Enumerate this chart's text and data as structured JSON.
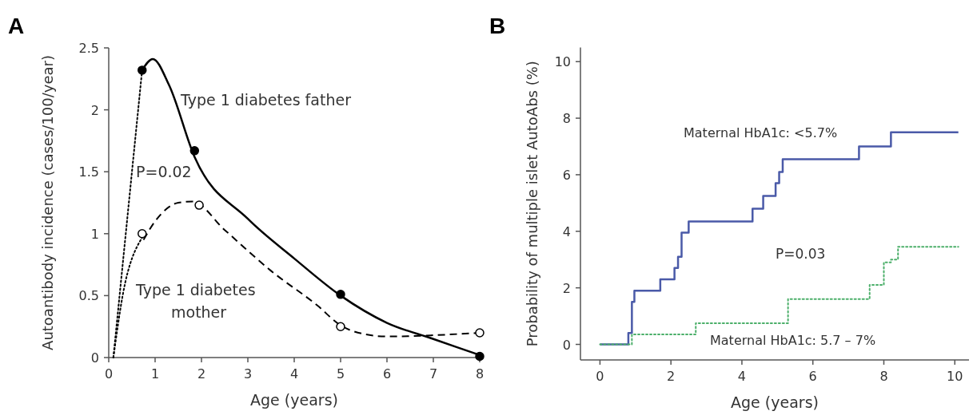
{
  "chart_data": [
    {
      "type": "line",
      "title": "A",
      "xlabel": "Age (years)",
      "ylabel": "Autoantibody incidence (cases/100/year)",
      "xlim": [
        0,
        8
      ],
      "ylim": [
        0,
        2.5
      ],
      "xticks": [
        0,
        1,
        2,
        3,
        4,
        5,
        6,
        7,
        8
      ],
      "yticks": [
        0,
        0.5,
        1,
        1.5,
        2,
        2.5
      ],
      "annotations": [
        "P=0.02"
      ],
      "series": [
        {
          "name": "Type 1 diabetes father",
          "line_style": "solid",
          "color": "#000000",
          "x": [
            0.72,
            0.95,
            1.3,
            1.85,
            3,
            4,
            5,
            6,
            7,
            8
          ],
          "values": [
            2.32,
            2.41,
            2.2,
            1.62,
            1.12,
            0.8,
            0.5,
            0.28,
            0.15,
            0.02
          ]
        },
        {
          "name": "Type 1 diabetes mother",
          "line_style": "dashed",
          "color": "#000000",
          "x": [
            0.75,
            1,
            1.5,
            1.8,
            2.5,
            3.5,
            4.5,
            5,
            5.5,
            6,
            7,
            8
          ],
          "values": [
            0.95,
            1.1,
            1.25,
            1.26,
            1.03,
            0.7,
            0.42,
            0.26,
            0.19,
            0.17,
            0.18,
            0.2
          ]
        },
        {
          "line_style": "dotted",
          "color": "#000000",
          "x": [
            0.1,
            0.72
          ],
          "values": [
            0,
            2.32
          ]
        },
        {
          "line_style": "dotted",
          "color": "#000000",
          "x": [
            0.1,
            0.3,
            0.72
          ],
          "values": [
            0,
            0.5,
            0.97
          ]
        },
        {
          "type": "scatter",
          "marker": "circle",
          "color": "#000000",
          "x": [
            0.72,
            1.85,
            5,
            8
          ],
          "values": [
            2.32,
            1.67,
            0.51,
            0.01
          ]
        },
        {
          "type": "scatter",
          "marker": "circle",
          "color": "#ffffff",
          "x": [
            0.72,
            1.95,
            5,
            8
          ],
          "values": [
            1.0,
            1.23,
            0.25,
            0.2
          ]
        }
      ]
    },
    {
      "type": "step",
      "title": "B",
      "xlabel": "Age (years)",
      "ylabel": "Probability of multiple islet AutoAbs (%)",
      "xlim": [
        -0.55,
        10.4
      ],
      "ylim": [
        -0.55,
        10.5
      ],
      "xticks": [
        0,
        2,
        4,
        6,
        8,
        10
      ],
      "yticks": [
        0,
        2,
        4,
        6,
        8,
        10
      ],
      "annotations": [
        "P=0.03"
      ],
      "series": [
        {
          "name": "Maternal HbA1c: <5.7%",
          "line_style": "solid",
          "color": "#4a5aa8",
          "x": [
            0,
            0.8,
            0.9,
            0.97,
            1.7,
            2.1,
            2.2,
            2.3,
            2.5,
            4.3,
            4.6,
            4.95,
            5.05,
            5.15,
            7.3,
            8.2,
            10.1
          ],
          "values": [
            0,
            0.4,
            1.5,
            1.9,
            2.3,
            2.7,
            3.1,
            3.95,
            4.35,
            4.8,
            5.25,
            5.7,
            6.1,
            6.55,
            7.0,
            7.5,
            7.5
          ]
        },
        {
          "name": "Maternal HbA1c: 5.7 – 7%",
          "line_style": "dotted",
          "color": "#4caf6a",
          "x": [
            0,
            0.9,
            2.7,
            5.3,
            7.6,
            8.0,
            8.2,
            8.4,
            10.1
          ],
          "values": [
            0,
            0.35,
            0.75,
            1.6,
            2.1,
            2.9,
            3.0,
            3.45,
            3.45
          ]
        }
      ]
    }
  ]
}
